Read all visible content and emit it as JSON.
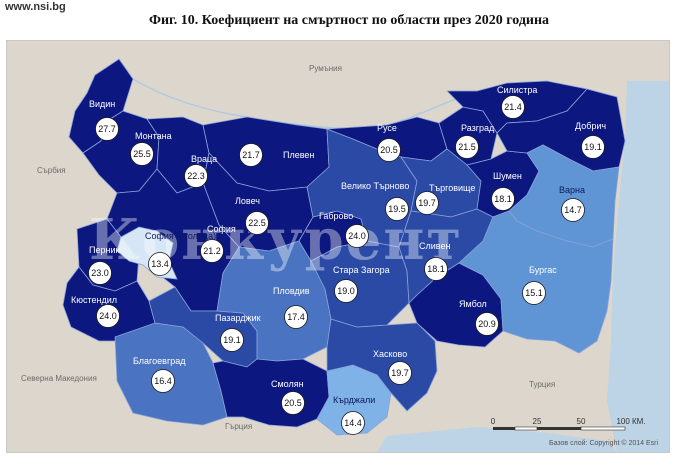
{
  "site": "www.nsi.bg",
  "title": "Фиг. 10. Коефициент на смъртност по области през 2020 година",
  "watermark": "Конкурент",
  "colors": {
    "sea": "#bdd3e6",
    "land": "#dcd6cc",
    "darkest": "#0c1880",
    "dark": "#13289a",
    "medium": "#2a4aa6",
    "medium_light": "#4a74c2",
    "light": "#5f95d4",
    "lightest": "#7fb2e6",
    "sofia_city": "#d6e6f6"
  },
  "neighbors": [
    "Румъния",
    "Сърбия",
    "Северна Македония",
    "Гърция",
    "Турция"
  ],
  "regions": [
    {
      "name": "Видин",
      "value": "27.7"
    },
    {
      "name": "Монтана",
      "value": "25.5"
    },
    {
      "name": "Враца",
      "value": "22.3"
    },
    {
      "name": "Плевен",
      "value": "21.7"
    },
    {
      "name": "Ловеч",
      "value": "22.5"
    },
    {
      "name": "София",
      "value": "21.2"
    },
    {
      "name": "София (столица)",
      "value": "13.4"
    },
    {
      "name": "Перник",
      "value": "23.0"
    },
    {
      "name": "Кюстендил",
      "value": "24.0"
    },
    {
      "name": "Благоевград",
      "value": "16.4"
    },
    {
      "name": "Пазарджик",
      "value": "19.1"
    },
    {
      "name": "Пловдив",
      "value": "17.4"
    },
    {
      "name": "Смолян",
      "value": "20.5"
    },
    {
      "name": "Кърджали",
      "value": "14.4"
    },
    {
      "name": "Хасково",
      "value": "19.7"
    },
    {
      "name": "Стара Загора",
      "value": "19.0"
    },
    {
      "name": "Габрово",
      "value": "24.0"
    },
    {
      "name": "Велико Търново",
      "value": "19.5"
    },
    {
      "name": "Русе",
      "value": "20.5"
    },
    {
      "name": "Разград",
      "value": "21.5"
    },
    {
      "name": "Силистра",
      "value": "21.4"
    },
    {
      "name": "Търговище",
      "value": "19.7"
    },
    {
      "name": "Шумен",
      "value": "18.1"
    },
    {
      "name": "Добрич",
      "value": "19.1"
    },
    {
      "name": "Варна",
      "value": "14.7"
    },
    {
      "name": "Сливен",
      "value": "18.1"
    },
    {
      "name": "Ямбол",
      "value": "20.9"
    },
    {
      "name": "Бургас",
      "value": "15.1"
    }
  ],
  "scale": {
    "ticks": [
      "0",
      "25",
      "50",
      "100 КМ."
    ]
  },
  "credit": "Базов слой: Copyright © 2014 Esri"
}
